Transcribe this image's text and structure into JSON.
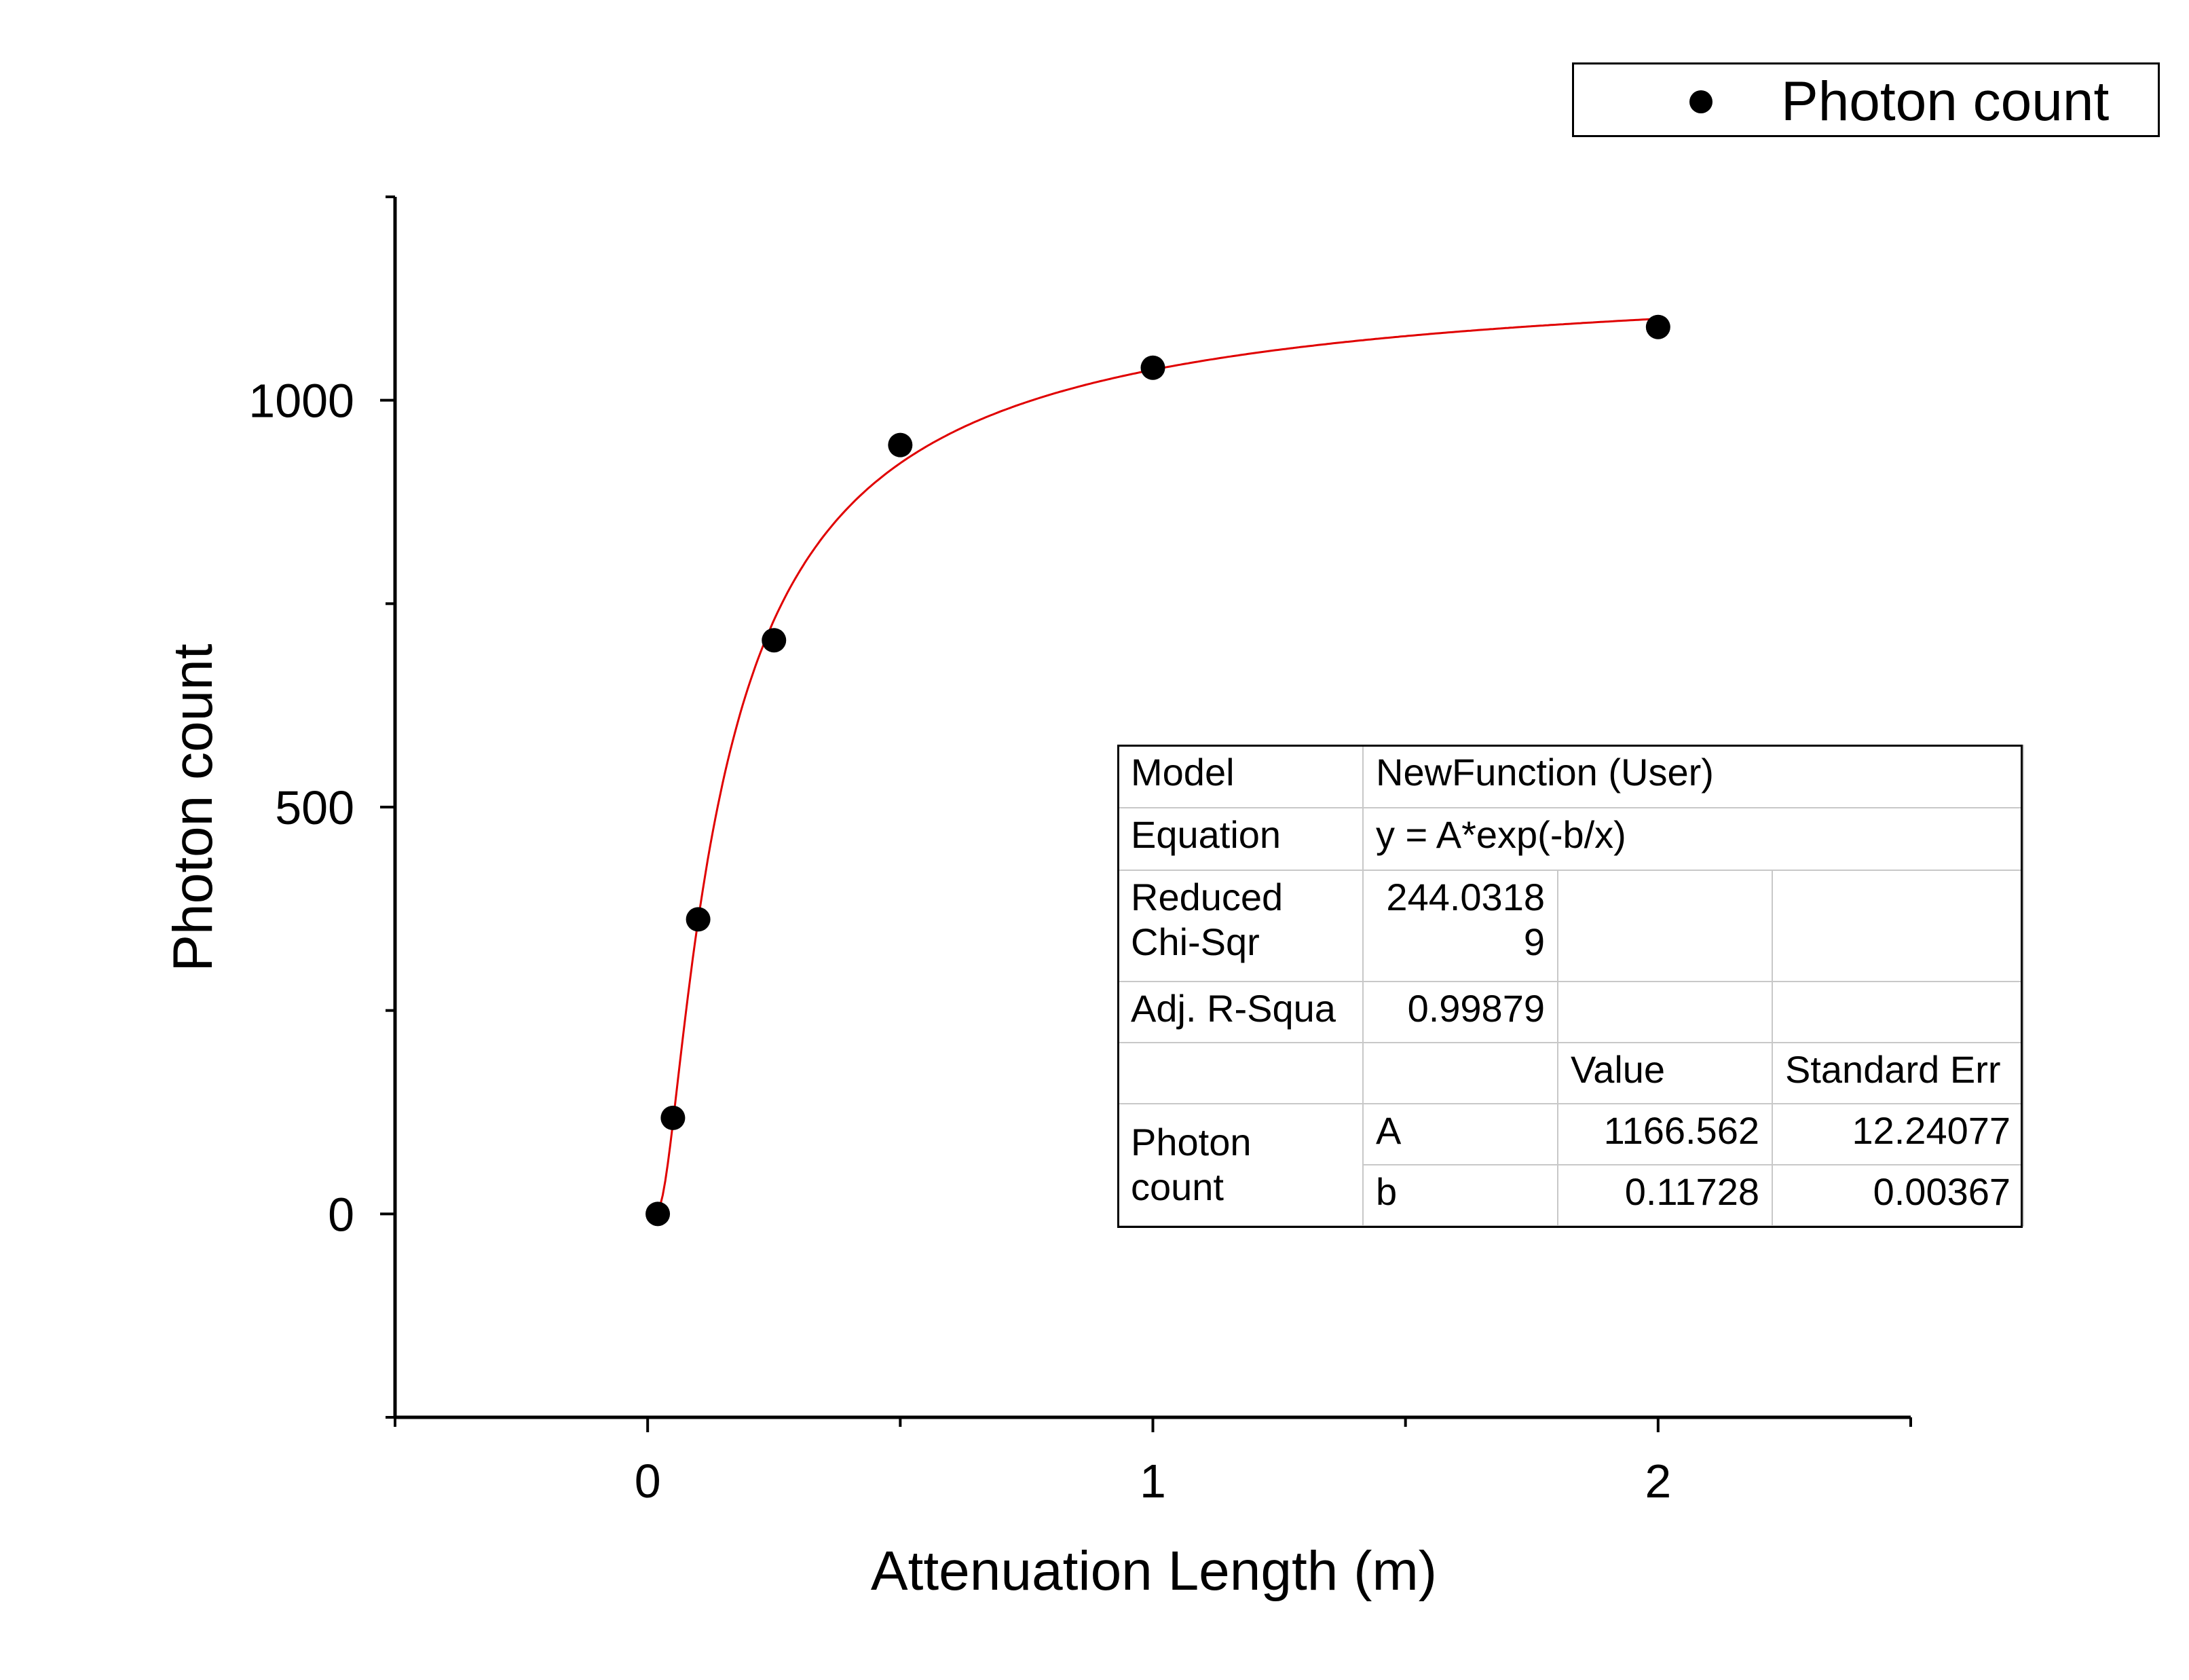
{
  "chart_data": {
    "type": "scatter",
    "xlabel": "Attenuation Length (m)",
    "ylabel": "Photon count",
    "xlim": [
      -0.5,
      2.5
    ],
    "ylim": [
      -250,
      1250
    ],
    "x_ticks": [
      0,
      1,
      2
    ],
    "y_ticks": [
      0,
      500,
      1000
    ],
    "legend_placement": "top-right",
    "grid": false,
    "series": [
      {
        "name": "Photon count",
        "color": "#000000",
        "marker": "circle",
        "x": [
          0.02,
          0.05,
          0.1,
          0.25,
          0.5,
          1.0,
          2.0
        ],
        "y": [
          0,
          118,
          362,
          705,
          945,
          1040,
          1090
        ]
      }
    ],
    "fit": {
      "color": "#e00000",
      "equation_form": "A*exp(-b/x)",
      "A": 1166.562,
      "b": 0.11728,
      "x_range": [
        0.02,
        2.0
      ]
    },
    "fit_table": {
      "model_label": "Model",
      "model_value": "NewFunction (User)",
      "equation_label": "Equation",
      "equation_value": "y = A*exp(-b/x)",
      "chi_label_1": "Reduced",
      "chi_label_2": "Chi-Sqr",
      "chi_value_1": "244.0318",
      "chi_value_2": "9",
      "r2_label": "Adj. R-Squa",
      "r2_value": "0.99879",
      "col_value": "Value",
      "col_err": "Standard Err",
      "param_group_1": "Photon",
      "param_group_2": "count",
      "param_A": "A",
      "A_value": "1166.562",
      "A_err": "12.24077",
      "param_b": "b",
      "b_value": "0.11728",
      "b_err": "0.00367"
    }
  }
}
